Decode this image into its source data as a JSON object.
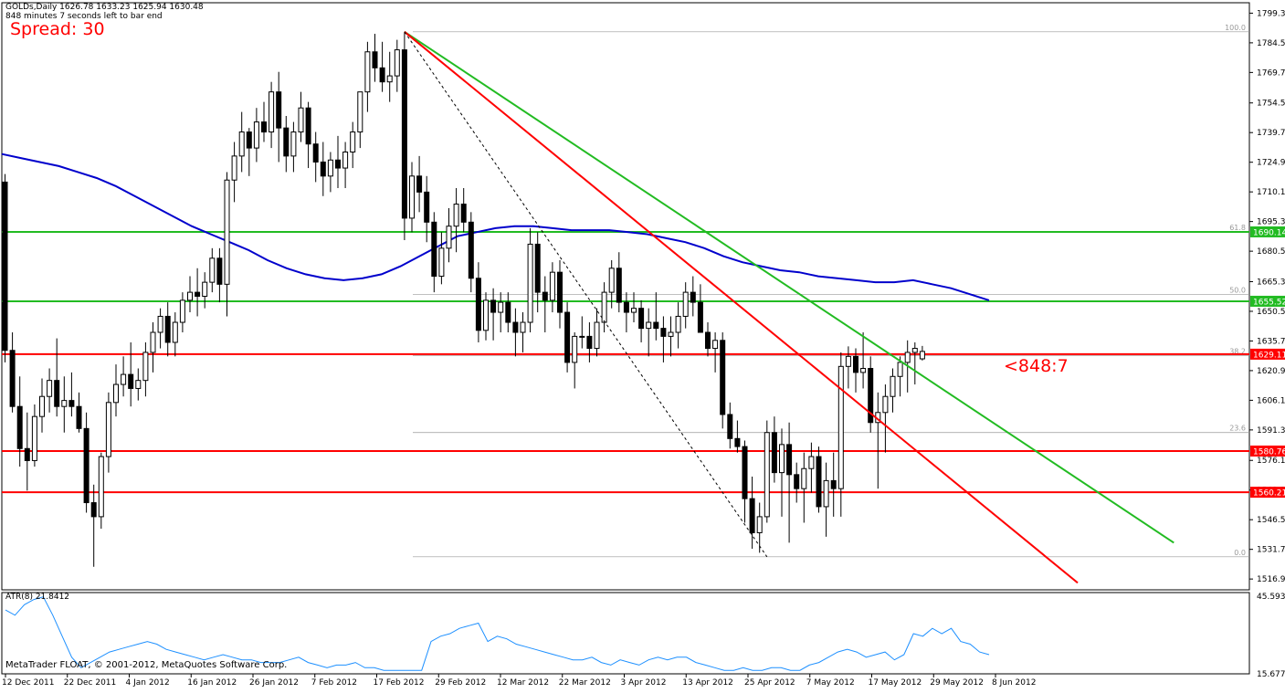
{
  "header": {
    "info": "GOLDs,Daily  1626.78 1633.23 1625.94 1630.48",
    "timer": "848 minutes 7 seconds left to bar end",
    "spread": "Spread: 30",
    "bar_timer": "<848:7"
  },
  "atr": {
    "label": "ATR(8) 21.8412",
    "max_tick": "45.5936",
    "min_tick": "15.6777"
  },
  "footer": {
    "copyright": "MetaTrader FLOAT, © 2001-2012, MetaQuotes Software Corp."
  },
  "colors": {
    "up_candle": "#ffffff",
    "down_candle": "#000000",
    "moving_average": "#0000cc",
    "resistance": "#22bb22",
    "support": "#ff0000",
    "atr_line": "#1e90ff",
    "fib": "#999999"
  },
  "chart_data": {
    "type": "candlestick",
    "symbol": "GOLDs",
    "timeframe": "Daily",
    "ylim": [
      1511.5,
      1804.5
    ],
    "y_ticks": [
      "1799.30",
      "1784.50",
      "1769.70",
      "1754.50",
      "1739.70",
      "1724.90",
      "1710.10",
      "1695.30",
      "1680.50",
      "1665.30",
      "1650.50",
      "1635.70",
      "1620.90",
      "1606.10",
      "1591.30",
      "1576.10",
      "1561.30",
      "1546.50",
      "1531.70",
      "1516.90"
    ],
    "x_ticks": [
      "12 Dec 2011",
      "22 Dec 2011",
      "4 Jan 2012",
      "16 Jan 2012",
      "26 Jan 2012",
      "7 Feb 2012",
      "17 Feb 2012",
      "29 Feb 2012",
      "12 Mar 2012",
      "22 Mar 2012",
      "3 Apr 2012",
      "13 Apr 2012",
      "25 Apr 2012",
      "7 May 2012",
      "17 May 2012",
      "29 May 2012",
      "8 Jun 2012"
    ],
    "candles": [
      [
        1715,
        1719,
        1625,
        1631
      ],
      [
        1631,
        1640,
        1600,
        1603
      ],
      [
        1603,
        1618,
        1573,
        1582
      ],
      [
        1582,
        1600,
        1561,
        1576
      ],
      [
        1576,
        1604,
        1573,
        1598
      ],
      [
        1598,
        1617,
        1590,
        1608
      ],
      [
        1608,
        1622,
        1600,
        1616
      ],
      [
        1616,
        1637,
        1598,
        1603
      ],
      [
        1603,
        1618,
        1590,
        1606
      ],
      [
        1606,
        1620,
        1598,
        1603
      ],
      [
        1603,
        1610,
        1590,
        1592
      ],
      [
        1592,
        1600,
        1550,
        1555
      ],
      [
        1555,
        1564,
        1523,
        1548
      ],
      [
        1548,
        1580,
        1542,
        1578
      ],
      [
        1578,
        1610,
        1570,
        1605
      ],
      [
        1605,
        1624,
        1598,
        1614
      ],
      [
        1614,
        1628,
        1608,
        1619
      ],
      [
        1619,
        1635,
        1603,
        1612
      ],
      [
        1612,
        1622,
        1606,
        1616
      ],
      [
        1616,
        1635,
        1608,
        1630
      ],
      [
        1630,
        1645,
        1620,
        1640
      ],
      [
        1640,
        1652,
        1632,
        1648
      ],
      [
        1648,
        1655,
        1628,
        1635
      ],
      [
        1635,
        1650,
        1628,
        1645
      ],
      [
        1645,
        1660,
        1640,
        1656
      ],
      [
        1656,
        1668,
        1650,
        1660
      ],
      [
        1660,
        1672,
        1648,
        1658
      ],
      [
        1658,
        1670,
        1652,
        1665
      ],
      [
        1665,
        1682,
        1660,
        1677
      ],
      [
        1677,
        1682,
        1655,
        1664
      ],
      [
        1664,
        1720,
        1648,
        1716
      ],
      [
        1716,
        1735,
        1705,
        1728
      ],
      [
        1728,
        1750,
        1720,
        1740
      ],
      [
        1740,
        1742,
        1718,
        1732
      ],
      [
        1732,
        1752,
        1725,
        1745
      ],
      [
        1745,
        1755,
        1735,
        1740
      ],
      [
        1740,
        1765,
        1732,
        1760
      ],
      [
        1760,
        1770,
        1725,
        1742
      ],
      [
        1742,
        1748,
        1720,
        1728
      ],
      [
        1728,
        1745,
        1720,
        1740
      ],
      [
        1740,
        1760,
        1735,
        1752
      ],
      [
        1752,
        1755,
        1722,
        1734
      ],
      [
        1734,
        1740,
        1715,
        1725
      ],
      [
        1725,
        1735,
        1708,
        1718
      ],
      [
        1718,
        1730,
        1710,
        1726
      ],
      [
        1726,
        1738,
        1712,
        1722
      ],
      [
        1722,
        1735,
        1712,
        1730
      ],
      [
        1730,
        1745,
        1722,
        1740
      ],
      [
        1740,
        1760,
        1732,
        1760
      ],
      [
        1760,
        1785,
        1750,
        1780
      ],
      [
        1780,
        1789,
        1765,
        1772
      ],
      [
        1772,
        1785,
        1760,
        1765
      ],
      [
        1765,
        1780,
        1755,
        1768
      ],
      [
        1768,
        1786,
        1760,
        1781
      ],
      [
        1781,
        1790,
        1686,
        1697
      ],
      [
        1697,
        1725,
        1690,
        1718
      ],
      [
        1718,
        1728,
        1700,
        1710
      ],
      [
        1710,
        1718,
        1685,
        1695
      ],
      [
        1695,
        1700,
        1660,
        1668
      ],
      [
        1668,
        1690,
        1664,
        1682
      ],
      [
        1682,
        1702,
        1675,
        1693
      ],
      [
        1693,
        1712,
        1680,
        1704
      ],
      [
        1704,
        1712,
        1690,
        1695
      ],
      [
        1695,
        1700,
        1660,
        1667
      ],
      [
        1667,
        1675,
        1635,
        1641
      ],
      [
        1641,
        1660,
        1636,
        1656
      ],
      [
        1656,
        1662,
        1636,
        1650
      ],
      [
        1650,
        1660,
        1640,
        1655
      ],
      [
        1655,
        1660,
        1640,
        1645
      ],
      [
        1645,
        1652,
        1628,
        1640
      ],
      [
        1640,
        1650,
        1630,
        1645
      ],
      [
        1645,
        1692,
        1640,
        1684
      ],
      [
        1684,
        1690,
        1650,
        1660
      ],
      [
        1660,
        1668,
        1640,
        1656
      ],
      [
        1656,
        1675,
        1650,
        1670
      ],
      [
        1670,
        1676,
        1642,
        1650
      ],
      [
        1650,
        1655,
        1620,
        1625
      ],
      [
        1625,
        1640,
        1612,
        1638
      ],
      [
        1638,
        1648,
        1632,
        1638
      ],
      [
        1638,
        1645,
        1625,
        1632
      ],
      [
        1632,
        1652,
        1628,
        1645
      ],
      [
        1645,
        1665,
        1640,
        1660
      ],
      [
        1660,
        1676,
        1652,
        1672
      ],
      [
        1672,
        1680,
        1650,
        1655
      ],
      [
        1655,
        1660,
        1640,
        1650
      ],
      [
        1650,
        1660,
        1645,
        1652
      ],
      [
        1652,
        1656,
        1635,
        1642
      ],
      [
        1642,
        1652,
        1628,
        1645
      ],
      [
        1645,
        1660,
        1636,
        1642
      ],
      [
        1642,
        1648,
        1625,
        1638
      ],
      [
        1638,
        1648,
        1628,
        1640
      ],
      [
        1640,
        1655,
        1632,
        1648
      ],
      [
        1648,
        1665,
        1642,
        1660
      ],
      [
        1660,
        1668,
        1648,
        1655
      ],
      [
        1655,
        1664,
        1640,
        1640
      ],
      [
        1640,
        1645,
        1628,
        1632
      ],
      [
        1632,
        1640,
        1620,
        1636
      ],
      [
        1636,
        1640,
        1592,
        1599
      ],
      [
        1599,
        1605,
        1582,
        1587
      ],
      [
        1587,
        1596,
        1580,
        1583
      ],
      [
        1583,
        1586,
        1545,
        1557
      ],
      [
        1557,
        1568,
        1532,
        1540
      ],
      [
        1540,
        1555,
        1530,
        1548
      ],
      [
        1548,
        1596,
        1545,
        1590
      ],
      [
        1590,
        1598,
        1565,
        1570
      ],
      [
        1570,
        1592,
        1548,
        1584
      ],
      [
        1584,
        1595,
        1535,
        1569
      ],
      [
        1569,
        1575,
        1555,
        1562
      ],
      [
        1562,
        1580,
        1545,
        1572
      ],
      [
        1572,
        1585,
        1560,
        1578
      ],
      [
        1578,
        1583,
        1550,
        1553
      ],
      [
        1553,
        1575,
        1538,
        1566
      ],
      [
        1566,
        1580,
        1548,
        1562
      ],
      [
        1562,
        1630,
        1548,
        1623
      ],
      [
        1623,
        1633,
        1612,
        1628
      ],
      [
        1628,
        1632,
        1610,
        1620
      ],
      [
        1620,
        1640,
        1612,
        1622
      ],
      [
        1622,
        1628,
        1590,
        1595
      ],
      [
        1595,
        1610,
        1562,
        1600
      ],
      [
        1600,
        1614,
        1580,
        1608
      ],
      [
        1608,
        1622,
        1600,
        1618
      ],
      [
        1618,
        1628,
        1608,
        1625
      ],
      [
        1625,
        1636,
        1610,
        1630
      ],
      [
        1630,
        1635,
        1614,
        1632
      ],
      [
        1626.78,
        1633.23,
        1625.94,
        1630.48
      ]
    ],
    "moving_average": [
      1729,
      1727,
      1725,
      1723,
      1720,
      1717,
      1713,
      1708,
      1703,
      1698,
      1693,
      1689,
      1685,
      1681,
      1676,
      1672,
      1669,
      1667,
      1666,
      1667,
      1669,
      1673,
      1678,
      1683,
      1688,
      1690,
      1692,
      1693,
      1693,
      1692,
      1691,
      1691,
      1691,
      1690,
      1689,
      1687,
      1685,
      1682,
      1678,
      1675,
      1673,
      1671,
      1670,
      1668,
      1667,
      1666,
      1665,
      1665,
      1666,
      1664,
      1662,
      1659,
      1656
    ],
    "horizontal_lines": [
      {
        "price": 1690.14,
        "color": "green",
        "label": "1690.14"
      },
      {
        "price": 1655.52,
        "color": "green",
        "label": "1655.52"
      },
      {
        "price": 1629.11,
        "color": "red",
        "label": "1629.11"
      },
      {
        "price": 1580.76,
        "color": "red",
        "label": "1580.76"
      },
      {
        "price": 1560.21,
        "color": "red",
        "label": "1560.21"
      }
    ],
    "trendlines": [
      {
        "color": "green",
        "from": [
          54,
          1790
        ],
        "to": [
          158,
          1535
        ]
      },
      {
        "color": "red",
        "from": [
          54,
          1790
        ],
        "to": [
          145,
          1515
        ]
      },
      {
        "color": "black",
        "style": "dashed",
        "from": [
          54,
          1790
        ],
        "to": [
          103,
          1528
        ]
      }
    ],
    "fibonacci": {
      "levels": [
        {
          "label": "100.0",
          "price": 1790
        },
        {
          "label": "61.8",
          "price": 1690.14
        },
        {
          "label": "50.0",
          "price": 1659
        },
        {
          "label": "38.2",
          "price": 1628.3
        },
        {
          "label": "23.6",
          "price": 1590
        },
        {
          "label": "0.0",
          "price": 1528
        }
      ]
    },
    "atr": {
      "ylim": [
        15.6777,
        45.5936
      ],
      "values": [
        40,
        38,
        42,
        44,
        45,
        38,
        30,
        22,
        18,
        20,
        22,
        24,
        25,
        26,
        27,
        28,
        27,
        25,
        24,
        23,
        22,
        21,
        22,
        23,
        22,
        21,
        21,
        20,
        20,
        20,
        21,
        22,
        20,
        19,
        18,
        19,
        19,
        20,
        18,
        18,
        17,
        17,
        17,
        17,
        17,
        28,
        30,
        31,
        33,
        34,
        35,
        28,
        30,
        29,
        27,
        26,
        25,
        24,
        23,
        22,
        21,
        21,
        22,
        20,
        19,
        21,
        20,
        19,
        21,
        22,
        21,
        22,
        22,
        20,
        19,
        18,
        17,
        17,
        18,
        17,
        17,
        18,
        18,
        17,
        17,
        19,
        20,
        22,
        24,
        25,
        24,
        22,
        23,
        24,
        21,
        23,
        31,
        30,
        33,
        31,
        33,
        28,
        27,
        24,
        23
      ]
    }
  }
}
